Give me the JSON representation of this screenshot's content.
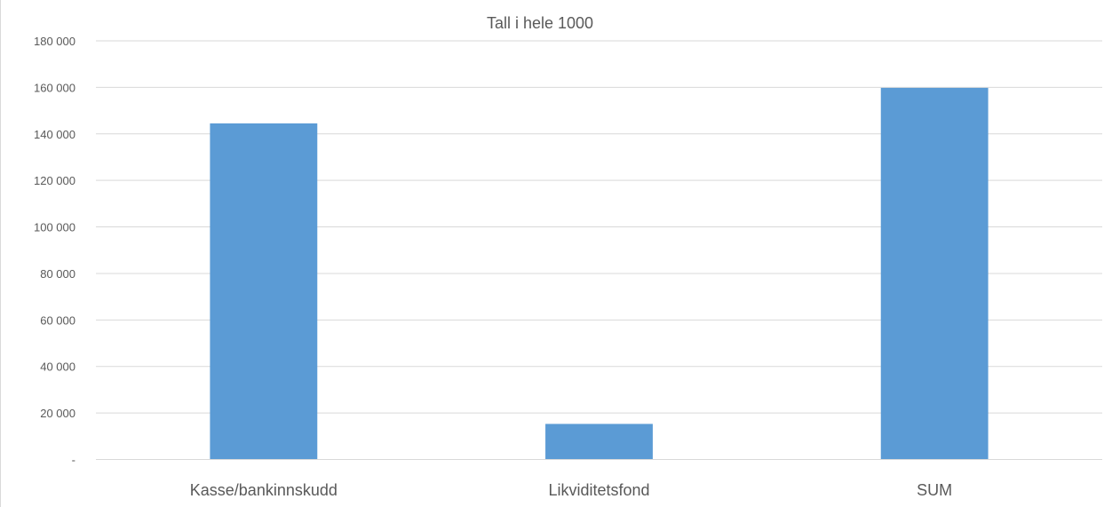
{
  "chart_data": {
    "type": "bar",
    "title": "Tall i hele 1000",
    "categories": [
      "Kasse/bankinnskudd",
      "Likviditetsfond",
      "SUM"
    ],
    "series": [
      {
        "values": [
          144500,
          15300,
          159800
        ],
        "color": "#5b9bd5"
      }
    ],
    "xlabel": "",
    "ylabel": "",
    "ylim": [
      0,
      180000
    ],
    "y_ticks": [
      0,
      20000,
      40000,
      60000,
      80000,
      100000,
      120000,
      140000,
      160000,
      180000
    ],
    "y_tick_labels": [
      "-",
      "20 000",
      "40 000",
      "60 000",
      "80 000",
      "100 000",
      "120 000",
      "140 000",
      "160 000",
      "180 000"
    ],
    "grid": true,
    "legend": "none"
  }
}
